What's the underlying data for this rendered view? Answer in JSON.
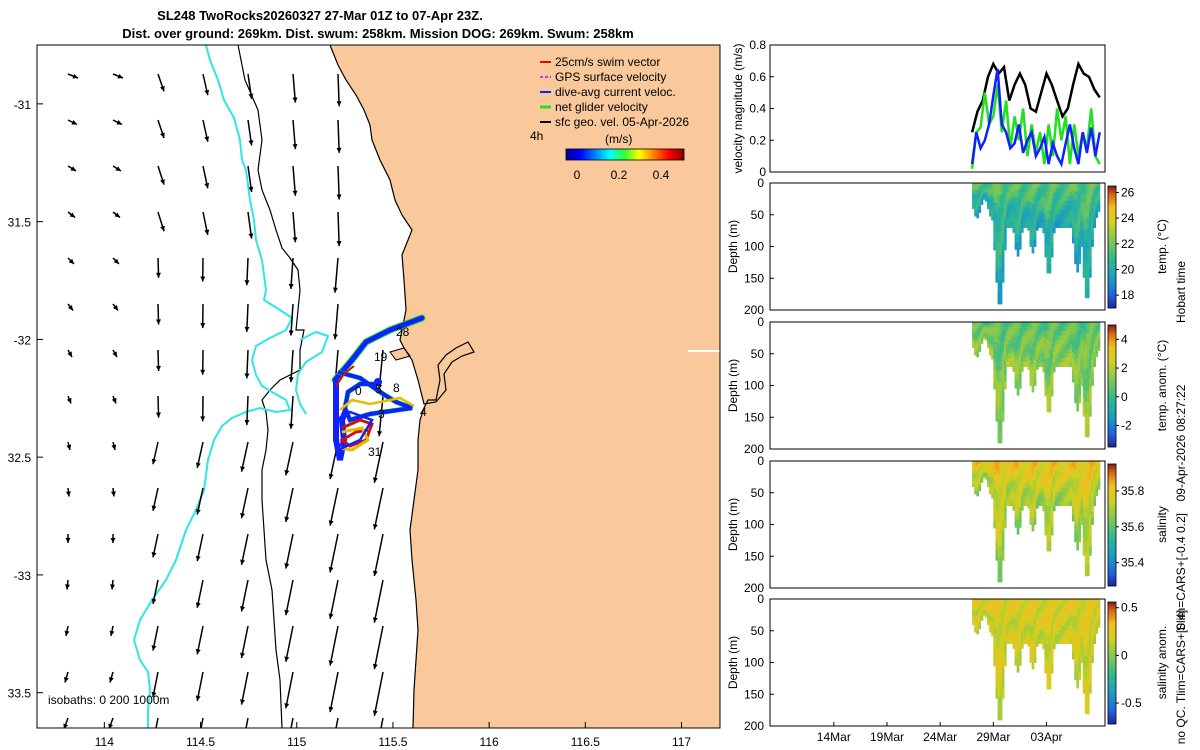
{
  "title": {
    "line1": "SL248 TwoRocks20260327 27-Mar 01Z to 07-Apr 23Z.",
    "line2": "Dist. over ground: 269km. Dist. swum: 258km. Mission DOG: 269km. Swum: 258km"
  },
  "colors": {
    "land": "#f9c89b",
    "isobath_cyan": "#2ee6e6",
    "vector_red": "#d01010",
    "gps_magenta": "#e030e0",
    "dive_blue": "#1020ff",
    "net_green": "#20e020",
    "sfc_black": "#000000"
  },
  "map": {
    "legend": [
      {
        "label": "25cm/s swim vector",
        "color": "#d01010"
      },
      {
        "label": "GPS surface velocity",
        "color": "#e030e0"
      },
      {
        "label": "dive-avg current veloc.",
        "color": "#1020ff"
      },
      {
        "label": "net glider velocity",
        "color": "#20e020"
      },
      {
        "label": "sfc geo. vel. 05-Apr-2026",
        "color": "#000000"
      }
    ],
    "colorbar_title": "(m/s)",
    "colorbar_ticks": [
      "0",
      "0.2",
      "0.4"
    ],
    "tag_4h": "4h",
    "isobaths_label": "isobaths: 0   200  1000m",
    "day_labels": [
      "28",
      "19",
      "0",
      "8",
      "5",
      "3",
      "4",
      "31"
    ]
  },
  "chart_data": [
    {
      "type": "map",
      "title": "SL248 TwoRocks20260327 27-Mar 01Z to 07-Apr 23Z.",
      "xlim": [
        113.65,
        117.2
      ],
      "ylim": [
        -33.65,
        -30.75
      ],
      "xticks": [
        114,
        114.5,
        115,
        115.5,
        116,
        116.5,
        117
      ],
      "xtick_labels": [
        "114",
        "114.5",
        "115",
        "115.5",
        "116",
        "116.5",
        "117"
      ],
      "yticks": [
        -31,
        -31.5,
        -32,
        -32.5,
        -33,
        -33.5
      ],
      "ytick_labels": [
        "-31",
        "31.5",
        "-32",
        "32.5",
        "-33",
        "33.5"
      ]
    },
    {
      "type": "line",
      "ylabel": "velocity magnitude (m/s)",
      "ylim": [
        0,
        0.8
      ],
      "yticks": [
        "0",
        "0.2",
        "0.4",
        "0.6",
        "0.8"
      ],
      "x_start_day": 27,
      "series": [
        {
          "name": "sfc geo. vel.",
          "color": "#000000",
          "x": [
            27,
            27.5,
            28,
            28.5,
            29,
            29.5,
            30,
            30.5,
            31,
            31.5,
            32,
            32.5,
            33,
            33.5,
            34,
            34.5,
            35,
            35.5,
            36,
            36.5,
            37,
            37.5,
            38,
            38.5,
            39
          ],
          "y": [
            0.25,
            0.38,
            0.45,
            0.6,
            0.68,
            0.62,
            0.66,
            0.45,
            0.55,
            0.62,
            0.55,
            0.4,
            0.38,
            0.5,
            0.62,
            0.55,
            0.45,
            0.35,
            0.4,
            0.55,
            0.68,
            0.62,
            0.6,
            0.52,
            0.47
          ]
        },
        {
          "name": "net glider velocity",
          "color": "#20e020",
          "x": [
            27,
            27.4,
            27.8,
            28.2,
            28.6,
            29,
            29.4,
            29.8,
            30.2,
            30.6,
            31,
            31.4,
            31.8,
            32.2,
            32.6,
            33,
            33.4,
            33.8,
            34.2,
            34.6,
            35,
            35.4,
            35.8,
            36.2,
            36.6,
            37,
            37.4,
            37.8,
            38.2,
            38.6,
            39
          ],
          "y": [
            0.02,
            0.25,
            0.28,
            0.5,
            0.3,
            0.35,
            0.55,
            0.25,
            0.45,
            0.15,
            0.35,
            0.2,
            0.4,
            0.1,
            0.3,
            0.12,
            0.25,
            0.05,
            0.3,
            0.1,
            0.4,
            0.2,
            0.35,
            0.05,
            0.3,
            0.1,
            0.25,
            0.15,
            0.4,
            0.1,
            0.05
          ]
        },
        {
          "name": "dive-avg current veloc.",
          "color": "#1020ff",
          "x": [
            27,
            27.4,
            27.8,
            28.2,
            28.6,
            29,
            29.4,
            29.8,
            30.2,
            30.6,
            31,
            31.4,
            31.8,
            32.2,
            32.6,
            33,
            33.4,
            33.8,
            34.2,
            34.6,
            35,
            35.4,
            35.8,
            36.2,
            36.6,
            37,
            37.4,
            37.8,
            38.2,
            38.6,
            39
          ],
          "y": [
            0.05,
            0.25,
            0.15,
            0.2,
            0.3,
            0.48,
            0.65,
            0.3,
            0.25,
            0.15,
            0.18,
            0.3,
            0.12,
            0.2,
            0.25,
            0.1,
            0.15,
            0.22,
            0.05,
            0.18,
            0.1,
            0.05,
            0.18,
            0.3,
            0.15,
            0.05,
            0.25,
            0.12,
            0.28,
            0.1,
            0.25
          ]
        }
      ]
    },
    {
      "type": "heatmap",
      "ylabel": "Depth (m)",
      "colorbar_label": "temp. (°C)",
      "ylim": [
        0,
        200
      ],
      "yticks": [
        "0",
        "50",
        "100",
        "150",
        "200"
      ],
      "cbar_ticks": [
        "26",
        "24",
        "22",
        "20",
        "18"
      ],
      "cbar_range": [
        17,
        26.5
      ],
      "colormap": "parula",
      "side_label": "Hobart time",
      "dips": [
        [
          29.5,
          195
        ],
        [
          31.2,
          115
        ],
        [
          32.6,
          110
        ],
        [
          34.1,
          145
        ],
        [
          36.8,
          140
        ],
        [
          37.7,
          185
        ]
      ],
      "surface_value": 21.5,
      "deep_value": 19.5
    },
    {
      "type": "heatmap",
      "ylabel": "Depth (m)",
      "colorbar_label": "temp. anom. (°C)",
      "ylim": [
        0,
        200
      ],
      "yticks": [
        "0",
        "50",
        "100",
        "150",
        "200"
      ],
      "cbar_ticks": [
        "4",
        "2",
        "0",
        "-2"
      ],
      "cbar_range": [
        -3.5,
        5
      ],
      "colormap": "parula",
      "side_label": "09-Apr-2026 08:27:22",
      "dips": [
        [
          29.5,
          195
        ],
        [
          31.2,
          115
        ],
        [
          32.6,
          110
        ],
        [
          34.1,
          145
        ],
        [
          36.8,
          140
        ],
        [
          37.7,
          185
        ]
      ],
      "surface_value": 0.6,
      "deep_value": 1.6
    },
    {
      "type": "heatmap",
      "ylabel": "Depth (m)",
      "colorbar_label": "salinity",
      "ylim": [
        0,
        200
      ],
      "yticks": [
        "0",
        "50",
        "100",
        "150",
        "200"
      ],
      "cbar_ticks": [
        "35.8",
        "35.6",
        "35.4"
      ],
      "cbar_range": [
        35.27,
        35.95
      ],
      "colormap": "parula",
      "side_label": "Slim=CARS+[-0.4 0.2]",
      "dips": [
        [
          29.5,
          195
        ],
        [
          31.2,
          115
        ],
        [
          32.6,
          110
        ],
        [
          34.1,
          145
        ],
        [
          36.8,
          140
        ],
        [
          37.7,
          185
        ]
      ],
      "surface_value": 35.8,
      "deep_value": 35.65
    },
    {
      "type": "heatmap",
      "ylabel": "Depth (m)",
      "colorbar_label": "salinity anom.",
      "ylim": [
        0,
        200
      ],
      "yticks": [
        "0",
        "50",
        "100",
        "150",
        "200"
      ],
      "cbar_ticks": [
        "0.5",
        "0",
        "-0.5"
      ],
      "cbar_range": [
        -0.72,
        0.56
      ],
      "colormap": "parula",
      "side_label": "no QC. Tlim=CARS+[0 4]",
      "xtick_labels": [
        "14Mar",
        "19Mar",
        "24Mar",
        "29Mar",
        "03Apr"
      ],
      "dips": [
        [
          29.5,
          195
        ],
        [
          31.2,
          115
        ],
        [
          32.6,
          110
        ],
        [
          34.1,
          145
        ],
        [
          36.8,
          140
        ],
        [
          37.7,
          185
        ]
      ],
      "surface_value": 0.22,
      "deep_value": 0.15
    }
  ]
}
